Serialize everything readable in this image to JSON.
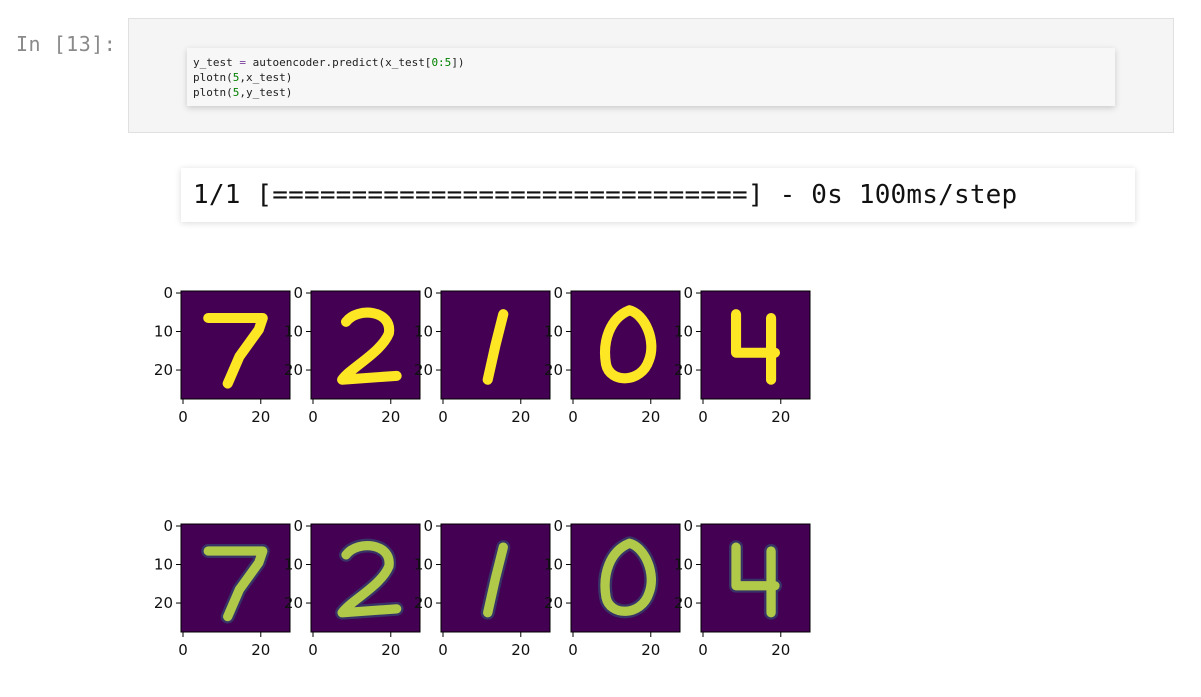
{
  "prompt": "In [13]:",
  "code": {
    "line1": {
      "var": "y_test",
      "eq": "=",
      "call": "autoencoder.predict(x_test[",
      "num": "0:5",
      "close": "])"
    },
    "line2": {
      "fn": "plotn(",
      "num": "5",
      "rest": ",x_test)"
    },
    "line3": {
      "fn": "plotn(",
      "num": "5",
      "rest": ",y_test)"
    }
  },
  "output_text": "1/1 [==============================] - 0s 100ms/step",
  "colors": {
    "viridis_low": "#440154",
    "viridis_high": "#fde725",
    "viridis_mid": "#21918c"
  },
  "figures": [
    {
      "name": "x_test",
      "digits": [
        "7",
        "2",
        "1",
        "0",
        "4"
      ]
    },
    {
      "name": "y_test",
      "digits": [
        "7",
        "2",
        "1",
        "0",
        "4"
      ]
    }
  ],
  "axes": {
    "y_ticks": [
      "0",
      "10",
      "20"
    ],
    "x_ticks": [
      "0",
      "20"
    ]
  }
}
